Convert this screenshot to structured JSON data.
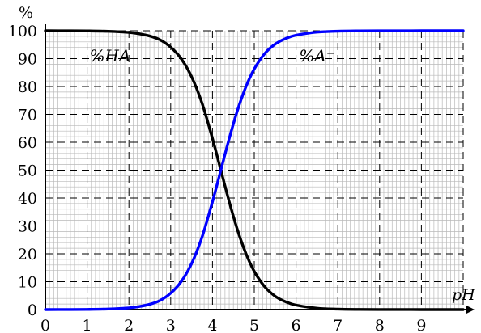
{
  "chart_data": {
    "type": "line",
    "title": "",
    "xlabel": "pH",
    "ylabel": "%",
    "xlim": [
      0,
      10
    ],
    "ylim": [
      0,
      100
    ],
    "x_ticks": [
      0,
      1,
      2,
      3,
      4,
      5,
      6,
      7,
      8,
      9
    ],
    "x_tick_labels": [
      "0",
      "1",
      "2",
      "3",
      "4",
      "5",
      "6",
      "7",
      "8",
      "9"
    ],
    "y_ticks": [
      0,
      10,
      20,
      30,
      40,
      50,
      60,
      70,
      80,
      90,
      100
    ],
    "y_tick_labels": [
      "0",
      "10",
      "20",
      "30",
      "40",
      "50",
      "60",
      "70",
      "80",
      "90",
      "100"
    ],
    "grid": true,
    "x": [
      0,
      0.5,
      1,
      1.5,
      2,
      2.25,
      2.5,
      2.75,
      3,
      3.25,
      3.5,
      3.75,
      4,
      4.2,
      4.4,
      4.6,
      4.8,
      5,
      5.25,
      5.5,
      5.75,
      6,
      6.5,
      7,
      7.5,
      8,
      8.5,
      9,
      9.5,
      10
    ],
    "series": [
      {
        "name": "%HA",
        "color": "#000000",
        "values": [
          100,
          99.98,
          99.94,
          99.8,
          99.4,
          98.9,
          98.1,
          96.7,
          94.1,
          90.0,
          83.5,
          74.0,
          61.3,
          50.0,
          38.7,
          28.5,
          20.1,
          13.7,
          8.2,
          4.8,
          2.8,
          1.6,
          0.5,
          0.16,
          0.05,
          0.02,
          0.01,
          0,
          0,
          0
        ]
      },
      {
        "name": "%A⁻",
        "color": "#0000ff",
        "values": [
          0,
          0.02,
          0.06,
          0.2,
          0.6,
          1.1,
          1.9,
          3.3,
          5.9,
          10.0,
          16.5,
          26.0,
          38.7,
          50.0,
          61.3,
          71.5,
          79.9,
          86.3,
          91.8,
          95.2,
          97.2,
          98.4,
          99.5,
          99.84,
          99.95,
          99.98,
          99.99,
          100,
          100,
          100
        ]
      }
    ],
    "annotations": [
      {
        "text": "%HA",
        "series": "%HA",
        "at": [
          1.55,
          89
        ]
      },
      {
        "text": "%A⁻",
        "series": "%A⁻",
        "at": [
          6.5,
          89
        ]
      }
    ]
  }
}
